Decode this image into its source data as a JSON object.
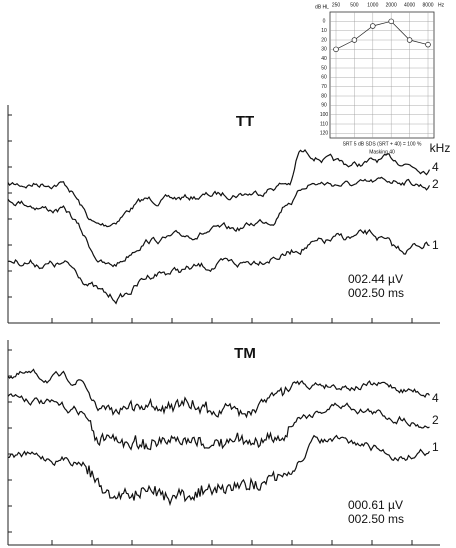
{
  "chart_data": {
    "type": "line",
    "y_axis_label": "dB HL",
    "x_unit": "Hz",
    "categories": [
      "250",
      "500",
      "1000",
      "2000",
      "4000",
      "8000"
    ],
    "series": [
      {
        "color": "#222222",
        "values": [
          30,
          20,
          5,
          0,
          20,
          25
        ]
      }
    ],
    "ylim": [
      -10,
      125
    ],
    "y_inverted": true,
    "yticks": [
      0,
      10,
      20,
      30,
      40,
      50,
      60,
      70,
      80,
      90,
      100,
      110,
      120
    ],
    "grid": true,
    "footer": [
      "SRT 5 dB   SDS (SRT + 40) = 100 %",
      "Masking 40"
    ]
  },
  "panels": [
    {
      "title": "TT",
      "unit": "kHz",
      "trace_labels": [
        "4",
        "2",
        "1"
      ],
      "readout": [
        "002.44 µV",
        "002.50 ms"
      ]
    },
    {
      "title": "TM",
      "trace_labels": [
        "4",
        "2",
        "1"
      ],
      "readout": [
        "000.61 µV",
        "002.50 ms"
      ]
    }
  ]
}
